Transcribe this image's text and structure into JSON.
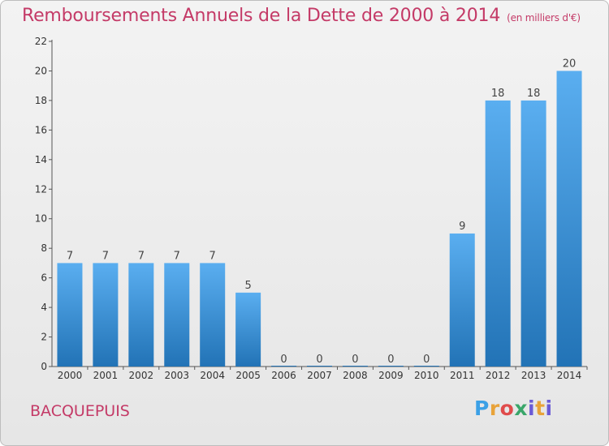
{
  "title": "Remboursements Annuels de la Dette de 2000 à 2014",
  "unit": "(en milliers d'€)",
  "commune": "BACQUEPUIS",
  "logo": {
    "text": "Proxiti",
    "colors": [
      "#3ba0e6",
      "#e8a33a",
      "#e04b4b",
      "#3aa66a",
      "#6b5bd6",
      "#e8a33a",
      "#6b5bd6"
    ]
  },
  "colors": {
    "title": "#c43a67",
    "bar_top": "#5aaef0",
    "bar_bottom": "#2273b6"
  },
  "chart_data": {
    "type": "bar",
    "categories": [
      "2000",
      "2001",
      "2002",
      "2003",
      "2004",
      "2005",
      "2006",
      "2007",
      "2008",
      "2009",
      "2010",
      "2011",
      "2012",
      "2013",
      "2014"
    ],
    "values": [
      7,
      7,
      7,
      7,
      7,
      5,
      0,
      0,
      0,
      0,
      0,
      9,
      18,
      18,
      20
    ],
    "ylim": [
      0,
      22
    ],
    "yticks": [
      0,
      2,
      4,
      6,
      8,
      10,
      12,
      14,
      16,
      18,
      20,
      22
    ],
    "grid": false,
    "xlabel": "",
    "ylabel": ""
  }
}
